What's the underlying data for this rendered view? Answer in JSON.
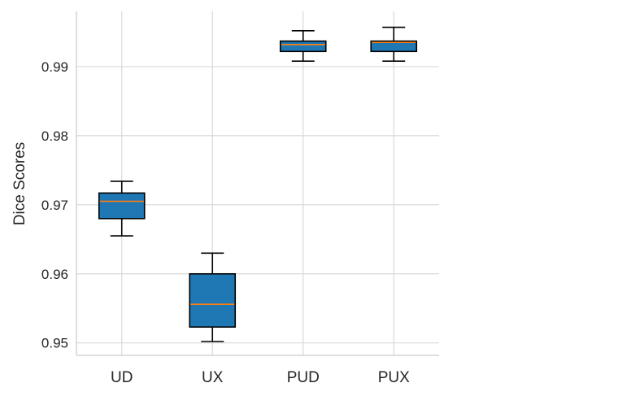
{
  "chart_data": {
    "type": "box",
    "title": "",
    "xlabel": "",
    "ylabel": "Dice Scores",
    "ylim": [
      0.9482,
      0.998
    ],
    "yticks": [
      0.95,
      0.96,
      0.97,
      0.98,
      0.99
    ],
    "ytick_labels": [
      "0.95",
      "0.96",
      "0.97",
      "0.98",
      "0.99"
    ],
    "grid": true,
    "categories": [
      "UD",
      "UX",
      "PUD",
      "PUX"
    ],
    "boxes": [
      {
        "category": "UD",
        "whisker_low": 0.9655,
        "q1": 0.968,
        "median": 0.9705,
        "q3": 0.9717,
        "whisker_high": 0.9734
      },
      {
        "category": "UX",
        "whisker_low": 0.9502,
        "q1": 0.9523,
        "median": 0.9556,
        "q3": 0.96,
        "whisker_high": 0.963
      },
      {
        "category": "PUD",
        "whisker_low": 0.9908,
        "q1": 0.9922,
        "median": 0.9932,
        "q3": 0.9937,
        "whisker_high": 0.9952
      },
      {
        "category": "PUX",
        "whisker_low": 0.9908,
        "q1": 0.9922,
        "median": 0.9935,
        "q3": 0.9937,
        "whisker_high": 0.9957
      }
    ],
    "colors": {
      "box_fill": "#1f77b4",
      "median_line": "#ff7f0e",
      "whisker": "#000000",
      "grid": "#d9d9d9",
      "axis": "#cccccc"
    }
  }
}
